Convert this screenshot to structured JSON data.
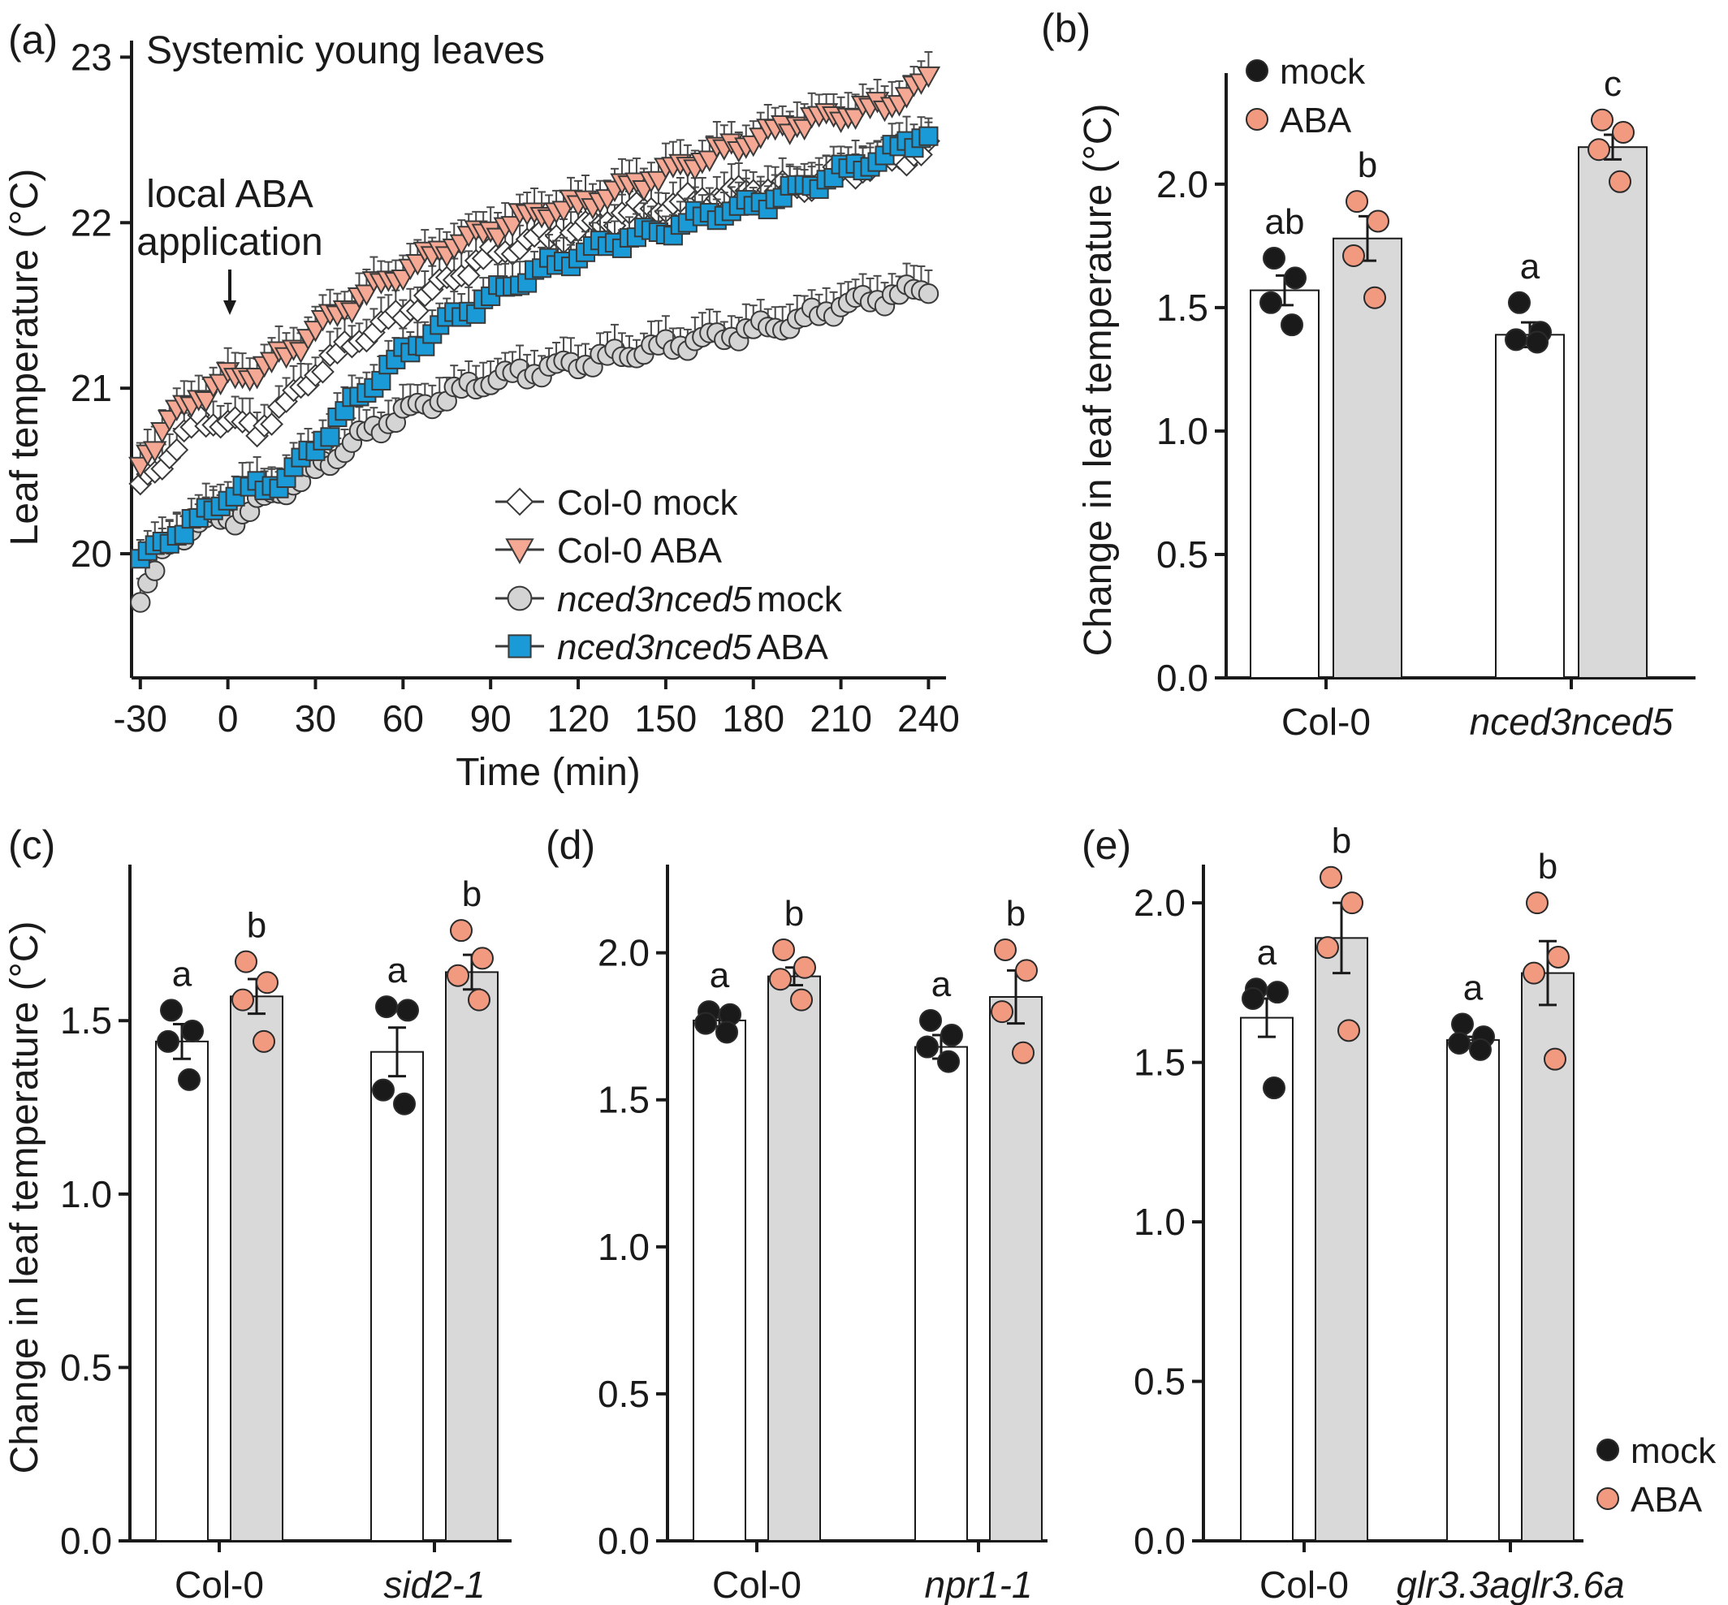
{
  "colors": {
    "mock_dot": "#1a1a1a",
    "aba_dot": "#f29a80",
    "mock_bar": "#ffffff",
    "aba_bar": "#d9d9d9",
    "col0_mock_marker": "#ffffff",
    "col0_aba_marker": "#f5a893",
    "nced_mock_marker": "#d4d4d4",
    "nced_aba_marker": "#1a9ad6"
  },
  "chart_data": [
    {
      "panel": "(a)",
      "type": "scatter",
      "title": "Systemic young leaves",
      "xlabel": "Time (min)",
      "ylabel": "Leaf temperature (°C)",
      "xlim": [
        -33,
        246
      ],
      "ylim": [
        19.25,
        23.1
      ],
      "xticks": [
        "-30",
        "0",
        "30",
        "60",
        "90",
        "120",
        "150",
        "180",
        "210",
        "240"
      ],
      "yticks": [
        "20",
        "21",
        "22",
        "23"
      ],
      "annotation": [
        "local ABA",
        "application"
      ],
      "annotation_x": 0,
      "sample_interval_min": 2.5,
      "series": [
        {
          "name": "Col-0 mock",
          "name_parts": [
            "Col-0 mock"
          ],
          "marker": "diamond",
          "anchors_x": [
            -30,
            -20,
            -10,
            0,
            10,
            20,
            30,
            45,
            60,
            75,
            90,
            105,
            120,
            135,
            150,
            165,
            180,
            195,
            210,
            225,
            240
          ],
          "anchors_y": [
            20.4,
            20.6,
            20.8,
            20.8,
            20.75,
            20.9,
            21.1,
            21.3,
            21.45,
            21.65,
            21.8,
            21.9,
            21.95,
            22.05,
            22.1,
            22.15,
            22.2,
            22.2,
            22.3,
            22.35,
            22.45
          ]
        },
        {
          "name": "Col-0 ABA",
          "name_parts": [
            "Col-0 ABA"
          ],
          "marker": "triangle-down",
          "anchors_x": [
            -30,
            -20,
            -10,
            0,
            10,
            20,
            30,
            45,
            60,
            75,
            90,
            105,
            120,
            135,
            150,
            165,
            180,
            195,
            210,
            225,
            240
          ],
          "anchors_y": [
            20.55,
            20.8,
            20.95,
            21.05,
            21.1,
            21.2,
            21.35,
            21.55,
            21.7,
            21.85,
            21.95,
            22.05,
            22.1,
            22.2,
            22.3,
            22.4,
            22.5,
            22.6,
            22.65,
            22.7,
            22.85
          ]
        },
        {
          "name": "nced3nced5 mock",
          "name_parts": [
            "nced3nced5",
            "mock"
          ],
          "marker": "circle",
          "anchors_x": [
            -30,
            -20,
            -10,
            0,
            10,
            20,
            30,
            45,
            60,
            75,
            90,
            105,
            120,
            135,
            150,
            165,
            180,
            195,
            210,
            225,
            240
          ],
          "anchors_y": [
            19.75,
            20.05,
            20.2,
            20.2,
            20.3,
            20.4,
            20.5,
            20.7,
            20.85,
            20.95,
            21.05,
            21.1,
            21.15,
            21.2,
            21.25,
            21.3,
            21.35,
            21.4,
            21.5,
            21.55,
            21.6
          ]
        },
        {
          "name": "nced3nced5 ABA",
          "name_parts": [
            "nced3nced5",
            "ABA"
          ],
          "marker": "square",
          "anchors_x": [
            -30,
            -20,
            -10,
            0,
            10,
            20,
            30,
            45,
            60,
            75,
            90,
            105,
            120,
            135,
            150,
            165,
            180,
            195,
            210,
            225,
            240
          ],
          "anchors_y": [
            19.95,
            20.1,
            20.2,
            20.35,
            20.4,
            20.45,
            20.65,
            20.95,
            21.2,
            21.4,
            21.55,
            21.7,
            21.8,
            21.9,
            21.95,
            22.05,
            22.1,
            22.2,
            22.3,
            22.4,
            22.55
          ]
        }
      ]
    },
    {
      "panel": "(b)",
      "type": "bar",
      "ylabel": "Change in leaf temperature (°C)",
      "ylim": [
        0,
        2.45
      ],
      "yticks": [
        "0.0",
        "0.5",
        "1.0",
        "1.5",
        "2.0"
      ],
      "categories": [
        "Col-0",
        "nced3nced5"
      ],
      "category_italic": [
        false,
        true
      ],
      "legend": [
        "mock",
        "ABA"
      ],
      "legend_position": "top-left",
      "series": [
        {
          "name": "mock",
          "values": [
            1.57,
            1.39
          ],
          "sem": [
            0.06,
            0.05
          ],
          "letters": [
            "ab",
            "a"
          ],
          "points": [
            [
              1.7,
              1.62,
              1.52,
              1.43
            ],
            [
              1.52,
              1.4,
              1.37,
              1.36
            ]
          ]
        },
        {
          "name": "ABA",
          "values": [
            1.78,
            2.15
          ],
          "sem": [
            0.09,
            0.05
          ],
          "letters": [
            "b",
            "c"
          ],
          "points": [
            [
              1.93,
              1.85,
              1.71,
              1.54
            ],
            [
              2.26,
              2.21,
              2.14,
              2.01
            ]
          ]
        }
      ]
    },
    {
      "panel": "(c)",
      "type": "bar",
      "ylabel": "Change in leaf temperature (°C)",
      "ylim": [
        0,
        1.95
      ],
      "yticks": [
        "0.0",
        "0.5",
        "1.0",
        "1.5"
      ],
      "categories": [
        "Col-0",
        "sid2-1"
      ],
      "category_italic": [
        false,
        true
      ],
      "series": [
        {
          "name": "mock",
          "values": [
            1.44,
            1.41
          ],
          "sem": [
            0.05,
            0.07
          ],
          "letters": [
            "a",
            "a"
          ],
          "points": [
            [
              1.53,
              1.47,
              1.44,
              1.33
            ],
            [
              1.54,
              1.53,
              1.3,
              1.26
            ]
          ]
        },
        {
          "name": "ABA",
          "values": [
            1.57,
            1.64
          ],
          "sem": [
            0.05,
            0.05
          ],
          "letters": [
            "b",
            "b"
          ],
          "points": [
            [
              1.67,
              1.61,
              1.56,
              1.44
            ],
            [
              1.76,
              1.68,
              1.63,
              1.56
            ]
          ]
        }
      ]
    },
    {
      "panel": "(d)",
      "type": "bar",
      "ylim": [
        0,
        2.3
      ],
      "yticks": [
        "0.0",
        "0.5",
        "1.0",
        "1.5",
        "2.0"
      ],
      "categories": [
        "Col-0",
        "npr1-1"
      ],
      "category_italic": [
        false,
        true
      ],
      "series": [
        {
          "name": "mock",
          "values": [
            1.77,
            1.68
          ],
          "sem": [
            0.02,
            0.04
          ],
          "letters": [
            "a",
            "a"
          ],
          "points": [
            [
              1.8,
              1.79,
              1.76,
              1.73
            ],
            [
              1.77,
              1.72,
              1.68,
              1.63
            ]
          ]
        },
        {
          "name": "ABA",
          "values": [
            1.92,
            1.85
          ],
          "sem": [
            0.03,
            0.09
          ],
          "letters": [
            "b",
            "b"
          ],
          "points": [
            [
              2.01,
              1.95,
              1.91,
              1.84
            ],
            [
              2.01,
              1.94,
              1.8,
              1.66
            ]
          ]
        }
      ]
    },
    {
      "panel": "(e)",
      "type": "bar",
      "ylim": [
        0,
        2.12
      ],
      "yticks": [
        "0.0",
        "0.5",
        "1.0",
        "1.5",
        "2.0"
      ],
      "categories": [
        "Col-0",
        "glr3.3aglr3.6a"
      ],
      "category_italic": [
        false,
        true
      ],
      "legend": [
        "mock",
        "ABA"
      ],
      "legend_position": "bottom-right",
      "series": [
        {
          "name": "mock",
          "values": [
            1.64,
            1.57
          ],
          "sem": [
            0.06,
            0.01
          ],
          "letters": [
            "a",
            "a"
          ],
          "points": [
            [
              1.73,
              1.72,
              1.7,
              1.42
            ],
            [
              1.62,
              1.58,
              1.56,
              1.54
            ]
          ]
        },
        {
          "name": "ABA",
          "values": [
            1.89,
            1.78
          ],
          "sem": [
            0.11,
            0.1
          ],
          "letters": [
            "b",
            "b"
          ],
          "points": [
            [
              2.08,
              2.0,
              1.86,
              1.6
            ],
            [
              2.0,
              1.83,
              1.78,
              1.51
            ]
          ]
        }
      ]
    }
  ]
}
